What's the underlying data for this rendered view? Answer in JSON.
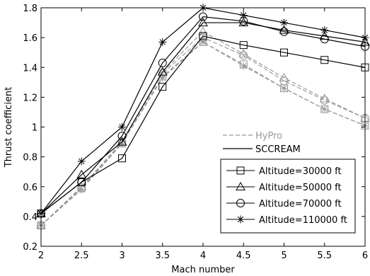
{
  "chart_data": {
    "type": "line",
    "xlabel": "Mach number",
    "ylabel": "Thrust coefficient",
    "xlim": [
      2,
      6
    ],
    "ylim": [
      0.2,
      1.8
    ],
    "xticks": [
      "2",
      "2.5",
      "3",
      "3.5",
      "4",
      "4.5",
      "5",
      "5.5",
      "6"
    ],
    "yticks": [
      "0.2",
      "0.4",
      "0.6",
      "0.8",
      "1",
      "1.2",
      "1.4",
      "1.6",
      "1.8"
    ],
    "x": [
      2,
      2.5,
      3,
      3.5,
      4,
      4.5,
      5,
      5.5,
      6
    ],
    "grid": false,
    "legend_top": {
      "placement": "center-right",
      "entries": [
        {
          "name": "HyPro",
          "style": "dashed",
          "color": "#999999"
        },
        {
          "name": "SCCREAM",
          "style": "solid",
          "color": "#000000"
        }
      ]
    },
    "legend_markers": {
      "placement": "lower-right",
      "entries": [
        {
          "name": "Altitude=30000 ft",
          "marker": "square"
        },
        {
          "name": "Altitude=50000 ft",
          "marker": "triangle"
        },
        {
          "name": "Altitude=70000 ft",
          "marker": "circle"
        },
        {
          "name": "Altitude=110000 ft",
          "marker": "star"
        }
      ]
    },
    "series": [
      {
        "model": "HyPro",
        "altitude": "Altitude=30000 ft",
        "marker": "square",
        "color": "#999999",
        "dash": true,
        "values": [
          0.34,
          0.59,
          0.89,
          1.34,
          1.57,
          1.42,
          1.26,
          1.12,
          1.01
        ]
      },
      {
        "model": "HyPro",
        "altitude": "Altitude=50000 ft",
        "marker": "triangle",
        "color": "#999999",
        "dash": true,
        "values": [
          0.34,
          0.6,
          0.9,
          1.37,
          1.64,
          1.49,
          1.33,
          1.19,
          1.06
        ]
      },
      {
        "model": "HyPro",
        "altitude": "Altitude=70000 ft",
        "marker": "circle",
        "color": "#999999",
        "dash": true,
        "values": [
          0.34,
          0.59,
          0.9,
          1.36,
          1.6,
          1.48,
          1.31,
          1.18,
          1.06
        ]
      },
      {
        "model": "HyPro",
        "altitude": "Altitude=110000 ft",
        "marker": "star",
        "color": "#999999",
        "dash": true,
        "values": [
          0.34,
          0.58,
          0.89,
          1.33,
          1.57,
          1.41,
          1.26,
          1.12,
          1.01
        ]
      },
      {
        "model": "SCCREAM",
        "altitude": "Altitude=30000 ft",
        "marker": "square",
        "color": "#000000",
        "dash": false,
        "values": [
          0.42,
          0.63,
          0.79,
          1.27,
          1.61,
          1.55,
          1.5,
          1.45,
          1.4
        ]
      },
      {
        "model": "SCCREAM",
        "altitude": "Altitude=50000 ft",
        "marker": "triangle",
        "color": "#000000",
        "dash": false,
        "values": [
          0.42,
          0.68,
          0.9,
          1.37,
          1.7,
          1.7,
          1.65,
          1.61,
          1.57
        ]
      },
      {
        "model": "SCCREAM",
        "altitude": "Altitude=70000 ft",
        "marker": "circle",
        "color": "#000000",
        "dash": false,
        "values": [
          0.42,
          0.63,
          0.94,
          1.43,
          1.74,
          1.71,
          1.64,
          1.59,
          1.54
        ]
      },
      {
        "model": "SCCREAM",
        "altitude": "Altitude=110000 ft",
        "marker": "star",
        "color": "#000000",
        "dash": false,
        "values": [
          0.42,
          0.77,
          1.0,
          1.57,
          1.8,
          1.75,
          1.7,
          1.65,
          1.6
        ]
      }
    ]
  }
}
